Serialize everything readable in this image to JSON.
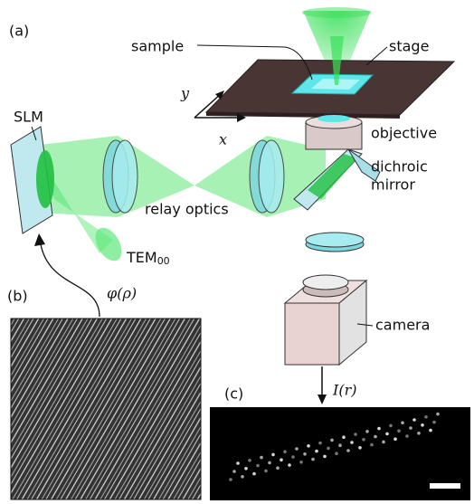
{
  "panels": {
    "a": "(a)",
    "b": "(b)",
    "c": "(c)"
  },
  "labels": {
    "sample": "sample",
    "stage": "stage",
    "slm": "SLM",
    "objective": "objective",
    "dichroic": [
      "dichroic",
      "mirror"
    ],
    "relay": "relay optics",
    "tem": {
      "base": "TEM",
      "sub": "00"
    },
    "camera": "camera"
  },
  "axes": {
    "x": "x",
    "y": "y"
  },
  "math": {
    "phase": "φ(ρ)",
    "intensity": "I(r)"
  }
}
